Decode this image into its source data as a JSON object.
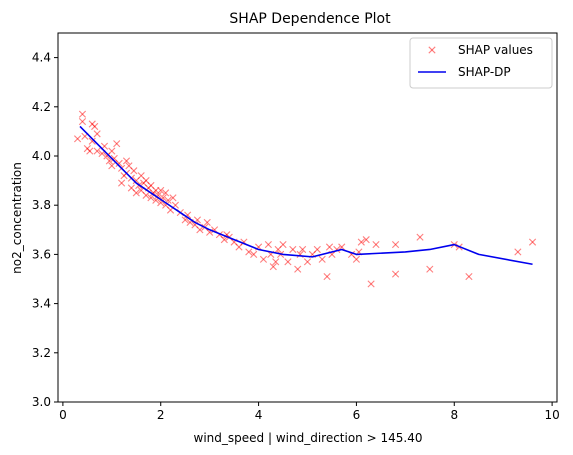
{
  "chart_data": {
    "type": "scatter",
    "title": "SHAP Dependence Plot",
    "xlabel": "wind_speed | wind_direction > 145.40",
    "ylabel": "no2_concentration",
    "xlim": [
      -0.1,
      10.1
    ],
    "ylim": [
      3.0,
      4.5
    ],
    "xticks": [
      0,
      2,
      4,
      6,
      8,
      10
    ],
    "yticks": [
      3.0,
      3.2,
      3.4,
      3.6,
      3.8,
      4.0,
      4.2,
      4.4
    ],
    "legend": {
      "placement": "top-right"
    },
    "grid": false,
    "series": [
      {
        "name": "SHAP values",
        "kind": "scatter",
        "marker": "x",
        "color": "#ff0000",
        "opacity": 0.5,
        "points": [
          [
            0.3,
            4.07
          ],
          [
            0.4,
            4.17
          ],
          [
            0.4,
            4.14
          ],
          [
            0.45,
            4.08
          ],
          [
            0.5,
            4.03
          ],
          [
            0.55,
            4.02
          ],
          [
            0.6,
            4.13
          ],
          [
            0.6,
            4.06
          ],
          [
            0.65,
            4.12
          ],
          [
            0.7,
            4.09
          ],
          [
            0.7,
            4.02
          ],
          [
            0.8,
            4.01
          ],
          [
            0.85,
            4.04
          ],
          [
            0.9,
            4.0
          ],
          [
            0.95,
            3.98
          ],
          [
            1.0,
            4.02
          ],
          [
            1.0,
            3.96
          ],
          [
            1.05,
            3.99
          ],
          [
            1.1,
            4.05
          ],
          [
            1.15,
            3.97
          ],
          [
            1.2,
            3.95
          ],
          [
            1.2,
            3.89
          ],
          [
            1.25,
            3.92
          ],
          [
            1.3,
            3.98
          ],
          [
            1.3,
            3.93
          ],
          [
            1.35,
            3.96
          ],
          [
            1.4,
            3.91
          ],
          [
            1.4,
            3.87
          ],
          [
            1.45,
            3.94
          ],
          [
            1.5,
            3.9
          ],
          [
            1.5,
            3.85
          ],
          [
            1.55,
            3.88
          ],
          [
            1.6,
            3.92
          ],
          [
            1.6,
            3.86
          ],
          [
            1.65,
            3.89
          ],
          [
            1.7,
            3.84
          ],
          [
            1.7,
            3.9
          ],
          [
            1.75,
            3.87
          ],
          [
            1.8,
            3.83
          ],
          [
            1.8,
            3.88
          ],
          [
            1.85,
            3.85
          ],
          [
            1.9,
            3.82
          ],
          [
            1.9,
            3.86
          ],
          [
            1.95,
            3.84
          ],
          [
            2.0,
            3.81
          ],
          [
            2.0,
            3.86
          ],
          [
            2.05,
            3.83
          ],
          [
            2.1,
            3.8
          ],
          [
            2.1,
            3.85
          ],
          [
            2.15,
            3.82
          ],
          [
            2.2,
            3.78
          ],
          [
            2.25,
            3.83
          ],
          [
            2.3,
            3.8
          ],
          [
            2.4,
            3.77
          ],
          [
            2.5,
            3.74
          ],
          [
            2.55,
            3.76
          ],
          [
            2.6,
            3.73
          ],
          [
            2.7,
            3.72
          ],
          [
            2.75,
            3.74
          ],
          [
            2.8,
            3.7
          ],
          [
            2.9,
            3.71
          ],
          [
            2.95,
            3.73
          ],
          [
            3.0,
            3.69
          ],
          [
            3.1,
            3.7
          ],
          [
            3.2,
            3.68
          ],
          [
            3.3,
            3.66
          ],
          [
            3.35,
            3.68
          ],
          [
            3.4,
            3.67
          ],
          [
            3.5,
            3.65
          ],
          [
            3.6,
            3.63
          ],
          [
            3.7,
            3.65
          ],
          [
            3.8,
            3.61
          ],
          [
            3.9,
            3.6
          ],
          [
            4.0,
            3.63
          ],
          [
            4.1,
            3.58
          ],
          [
            4.2,
            3.64
          ],
          [
            4.25,
            3.6
          ],
          [
            4.3,
            3.55
          ],
          [
            4.35,
            3.57
          ],
          [
            4.4,
            3.62
          ],
          [
            4.45,
            3.6
          ],
          [
            4.5,
            3.64
          ],
          [
            4.6,
            3.57
          ],
          [
            4.7,
            3.62
          ],
          [
            4.8,
            3.54
          ],
          [
            4.85,
            3.6
          ],
          [
            4.9,
            3.62
          ],
          [
            5.0,
            3.57
          ],
          [
            5.1,
            3.6
          ],
          [
            5.2,
            3.62
          ],
          [
            5.3,
            3.58
          ],
          [
            5.4,
            3.51
          ],
          [
            5.45,
            3.63
          ],
          [
            5.5,
            3.6
          ],
          [
            5.6,
            3.62
          ],
          [
            5.7,
            3.63
          ],
          [
            5.9,
            3.6
          ],
          [
            6.0,
            3.58
          ],
          [
            6.05,
            3.61
          ],
          [
            6.1,
            3.65
          ],
          [
            6.2,
            3.66
          ],
          [
            6.3,
            3.48
          ],
          [
            6.4,
            3.64
          ],
          [
            6.8,
            3.64
          ],
          [
            6.8,
            3.52
          ],
          [
            7.3,
            3.67
          ],
          [
            7.5,
            3.54
          ],
          [
            8.0,
            3.64
          ],
          [
            8.1,
            3.63
          ],
          [
            8.3,
            3.51
          ],
          [
            9.3,
            3.61
          ],
          [
            9.6,
            3.65
          ]
        ]
      },
      {
        "name": "SHAP-DP",
        "kind": "line",
        "color": "#0000ee",
        "points": [
          [
            0.35,
            4.12
          ],
          [
            0.6,
            4.07
          ],
          [
            0.9,
            4.01
          ],
          [
            1.2,
            3.95
          ],
          [
            1.5,
            3.89
          ],
          [
            1.8,
            3.85
          ],
          [
            2.1,
            3.81
          ],
          [
            2.4,
            3.77
          ],
          [
            2.7,
            3.73
          ],
          [
            3.0,
            3.7
          ],
          [
            3.5,
            3.66
          ],
          [
            4.0,
            3.62
          ],
          [
            4.5,
            3.6
          ],
          [
            5.1,
            3.59
          ],
          [
            5.7,
            3.62
          ],
          [
            6.0,
            3.6
          ],
          [
            7.0,
            3.61
          ],
          [
            7.5,
            3.62
          ],
          [
            8.0,
            3.64
          ],
          [
            8.5,
            3.6
          ],
          [
            9.6,
            3.56
          ]
        ]
      }
    ]
  }
}
